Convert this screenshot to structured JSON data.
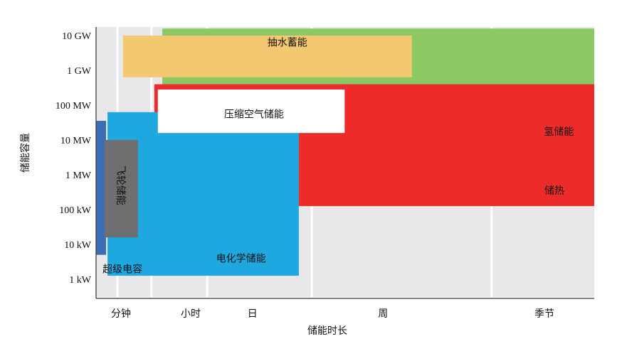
{
  "chart_data": {
    "type": "range-region",
    "xlabel": "储能时长",
    "ylabel": "储能容量",
    "x_categories": [
      "分钟",
      "小时",
      "日",
      "周",
      "季节"
    ],
    "y_ticks": [
      "1 kW",
      "10 kW",
      "100 kW",
      "1 MW",
      "10 MW",
      "100 MW",
      "1 GW",
      "10 GW"
    ],
    "regions": [
      {
        "name": "氢储能",
        "color": "#8cc864",
        "x_range": [
          0.133,
          1.0
        ],
        "y_range": [
          3.36,
          7.2
        ]
      },
      {
        "name": "储热",
        "color": "#ee2b2b",
        "x_range": [
          0.117,
          1.0
        ],
        "y_range": [
          2.1,
          5.6
        ]
      },
      {
        "name": "电化学储能",
        "color": "#1fa8e0",
        "x_range": [
          0.023,
          0.407
        ],
        "y_range": [
          0.1,
          4.8
        ]
      },
      {
        "name": "抽水蓄能",
        "color": "#f4c870",
        "x_range": [
          0.054,
          0.634
        ],
        "y_range": [
          5.8,
          7.0
        ]
      },
      {
        "name": "压缩空气储能",
        "color": "#ffffff",
        "x_range": [
          0.124,
          0.499
        ],
        "y_range": [
          4.2,
          5.45
        ]
      },
      {
        "name": "超级电容",
        "color": "#3e6cb4",
        "x_range": [
          0.0,
          0.02
        ],
        "y_range": [
          0.7,
          4.55
        ]
      },
      {
        "name": "飞轮储能",
        "color": "#6f6f71",
        "x_range": [
          0.017,
          0.084
        ],
        "y_range": [
          1.2,
          4.0
        ]
      }
    ]
  }
}
